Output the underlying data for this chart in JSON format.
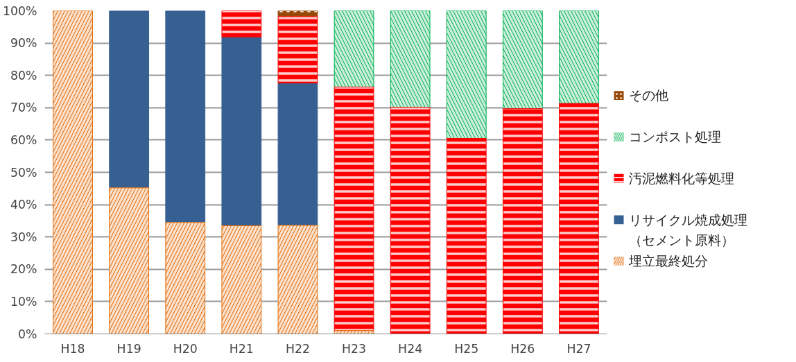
{
  "chart_data": {
    "type": "bar",
    "stacked": true,
    "categories": [
      "H18",
      "H19",
      "H20",
      "H21",
      "H22",
      "H23",
      "H24",
      "H25",
      "H26",
      "H27"
    ],
    "series": [
      {
        "name": "埋立最終処分",
        "color": "#e46c0a",
        "values": [
          100,
          45.2,
          34.5,
          33.5,
          33.6,
          1,
          null,
          null,
          null,
          null
        ]
      },
      {
        "name": "リサイクル焼成処理（セメント原料）",
        "color": "#376092",
        "values": [
          null,
          54.8,
          65.5,
          58.2,
          43.8,
          null,
          null,
          null,
          null,
          null
        ]
      },
      {
        "name": "汚泥燃料化等処理",
        "color": "#ff0000",
        "values": [
          null,
          null,
          null,
          8.3,
          20.8,
          75.4,
          70.1,
          60.5,
          69.7,
          71.3
        ]
      },
      {
        "name": "コンポスト処理",
        "color": "#00b050",
        "values": [
          null,
          null,
          null,
          null,
          null,
          23.6,
          29.9,
          39.5,
          30.3,
          28.7
        ]
      },
      {
        "name": "その他",
        "color": "#984807",
        "values": [
          null,
          null,
          null,
          null,
          1.8,
          null,
          null,
          null,
          null,
          null
        ]
      }
    ],
    "ylim": [
      0,
      100
    ],
    "yticks": [
      {
        "value": 0,
        "label": "0%"
      },
      {
        "value": 10,
        "label": "10%"
      },
      {
        "value": 20,
        "label": "20%"
      },
      {
        "value": 30,
        "label": "30%"
      },
      {
        "value": 40,
        "label": "40%"
      },
      {
        "value": 50,
        "label": "50%"
      },
      {
        "value": 60,
        "label": "60%"
      },
      {
        "value": 70,
        "label": "70%"
      },
      {
        "value": 80,
        "label": "80%"
      },
      {
        "value": 90,
        "label": "90%"
      },
      {
        "value": 100,
        "label": "100%"
      }
    ],
    "grid": "y",
    "legend": "right"
  }
}
